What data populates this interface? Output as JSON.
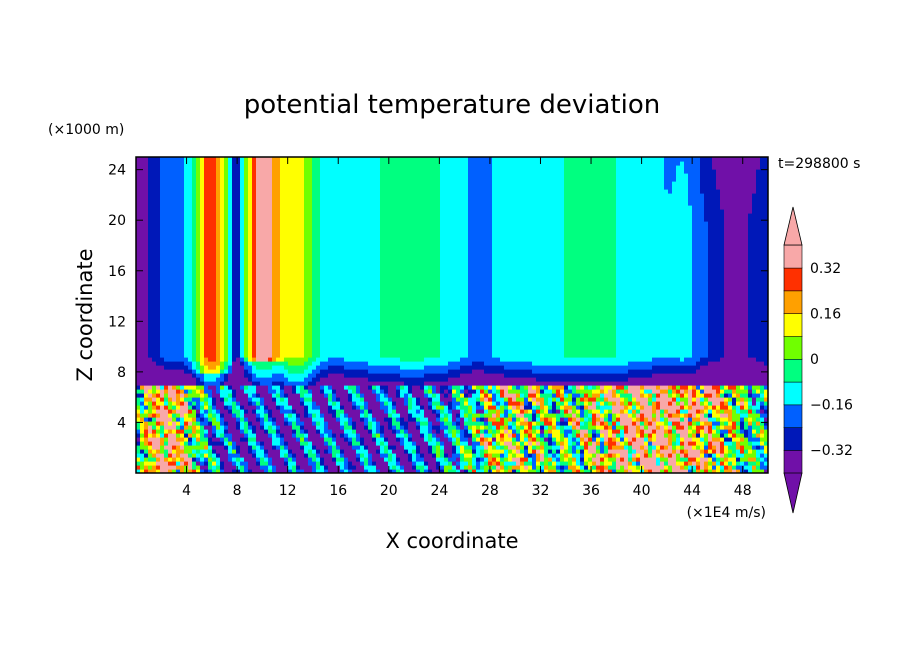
{
  "chart_data": {
    "type": "heatmap",
    "title": "potential temperature deviation",
    "xlabel": "X coordinate",
    "ylabel": "Z coordinate",
    "x_unit": "(×1E4 m/s)",
    "y_unit": "(×1000 m)",
    "time_label": "t=298800 s",
    "xlim": [
      0,
      50
    ],
    "ylim": [
      0,
      25
    ],
    "x_ticks": [
      4,
      8,
      12,
      16,
      20,
      24,
      28,
      32,
      36,
      40,
      44,
      48
    ],
    "y_ticks": [
      4,
      8,
      12,
      16,
      20,
      24
    ],
    "colorbar": {
      "levels": [
        -0.4,
        -0.32,
        -0.24,
        -0.16,
        -0.08,
        0,
        0.08,
        0.16,
        0.24,
        0.32,
        0.4
      ],
      "labels": [
        "0.32",
        "0.16",
        "0",
        "−0.16",
        "−0.32"
      ],
      "label_values": [
        0.32,
        0.16,
        0,
        -0.16,
        -0.32
      ],
      "under_color": "#7010a8",
      "over_color": "#f8a8a8",
      "colors": [
        "#7010a8",
        "#0018b8",
        "#0060ff",
        "#00ffff",
        "#00ff80",
        "#70ff00",
        "#ffff00",
        "#ffa000",
        "#ff3000",
        "#f8a8a8"
      ]
    },
    "series": [
      {
        "field": "column_centers_x",
        "values": [
          6,
          10,
          13,
          19,
          22,
          36,
          43
        ]
      },
      {
        "field": "boundary_layer_top_z",
        "values": [
          7
        ]
      }
    ]
  }
}
